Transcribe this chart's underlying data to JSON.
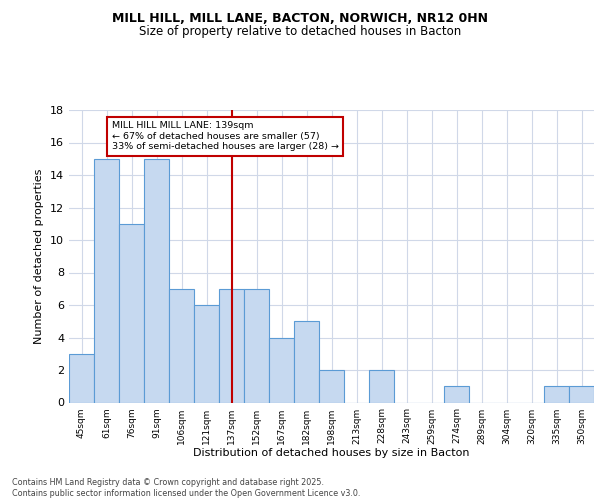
{
  "title1": "MILL HILL, MILL LANE, BACTON, NORWICH, NR12 0HN",
  "title2": "Size of property relative to detached houses in Bacton",
  "xlabel": "Distribution of detached houses by size in Bacton",
  "ylabel": "Number of detached properties",
  "bins": [
    "45sqm",
    "61sqm",
    "76sqm",
    "91sqm",
    "106sqm",
    "121sqm",
    "137sqm",
    "152sqm",
    "167sqm",
    "182sqm",
    "198sqm",
    "213sqm",
    "228sqm",
    "243sqm",
    "259sqm",
    "274sqm",
    "289sqm",
    "304sqm",
    "320sqm",
    "335sqm",
    "350sqm"
  ],
  "counts": [
    3,
    15,
    11,
    15,
    7,
    6,
    7,
    7,
    4,
    5,
    2,
    0,
    2,
    0,
    0,
    1,
    0,
    0,
    0,
    1,
    1
  ],
  "bar_color": "#c6d9f0",
  "bar_edge_color": "#5b9bd5",
  "vline_x": 6,
  "vline_color": "#c00000",
  "annotation_text": "MILL HILL MILL LANE: 139sqm\n← 67% of detached houses are smaller (57)\n33% of semi-detached houses are larger (28) →",
  "annotation_box_color": "#ffffff",
  "annotation_box_edge": "#c00000",
  "footer": "Contains HM Land Registry data © Crown copyright and database right 2025.\nContains public sector information licensed under the Open Government Licence v3.0.",
  "ylim": [
    0,
    18
  ],
  "yticks": [
    0,
    2,
    4,
    6,
    8,
    10,
    12,
    14,
    16,
    18
  ],
  "bg_color": "#ffffff",
  "grid_color": "#d0d8e8"
}
